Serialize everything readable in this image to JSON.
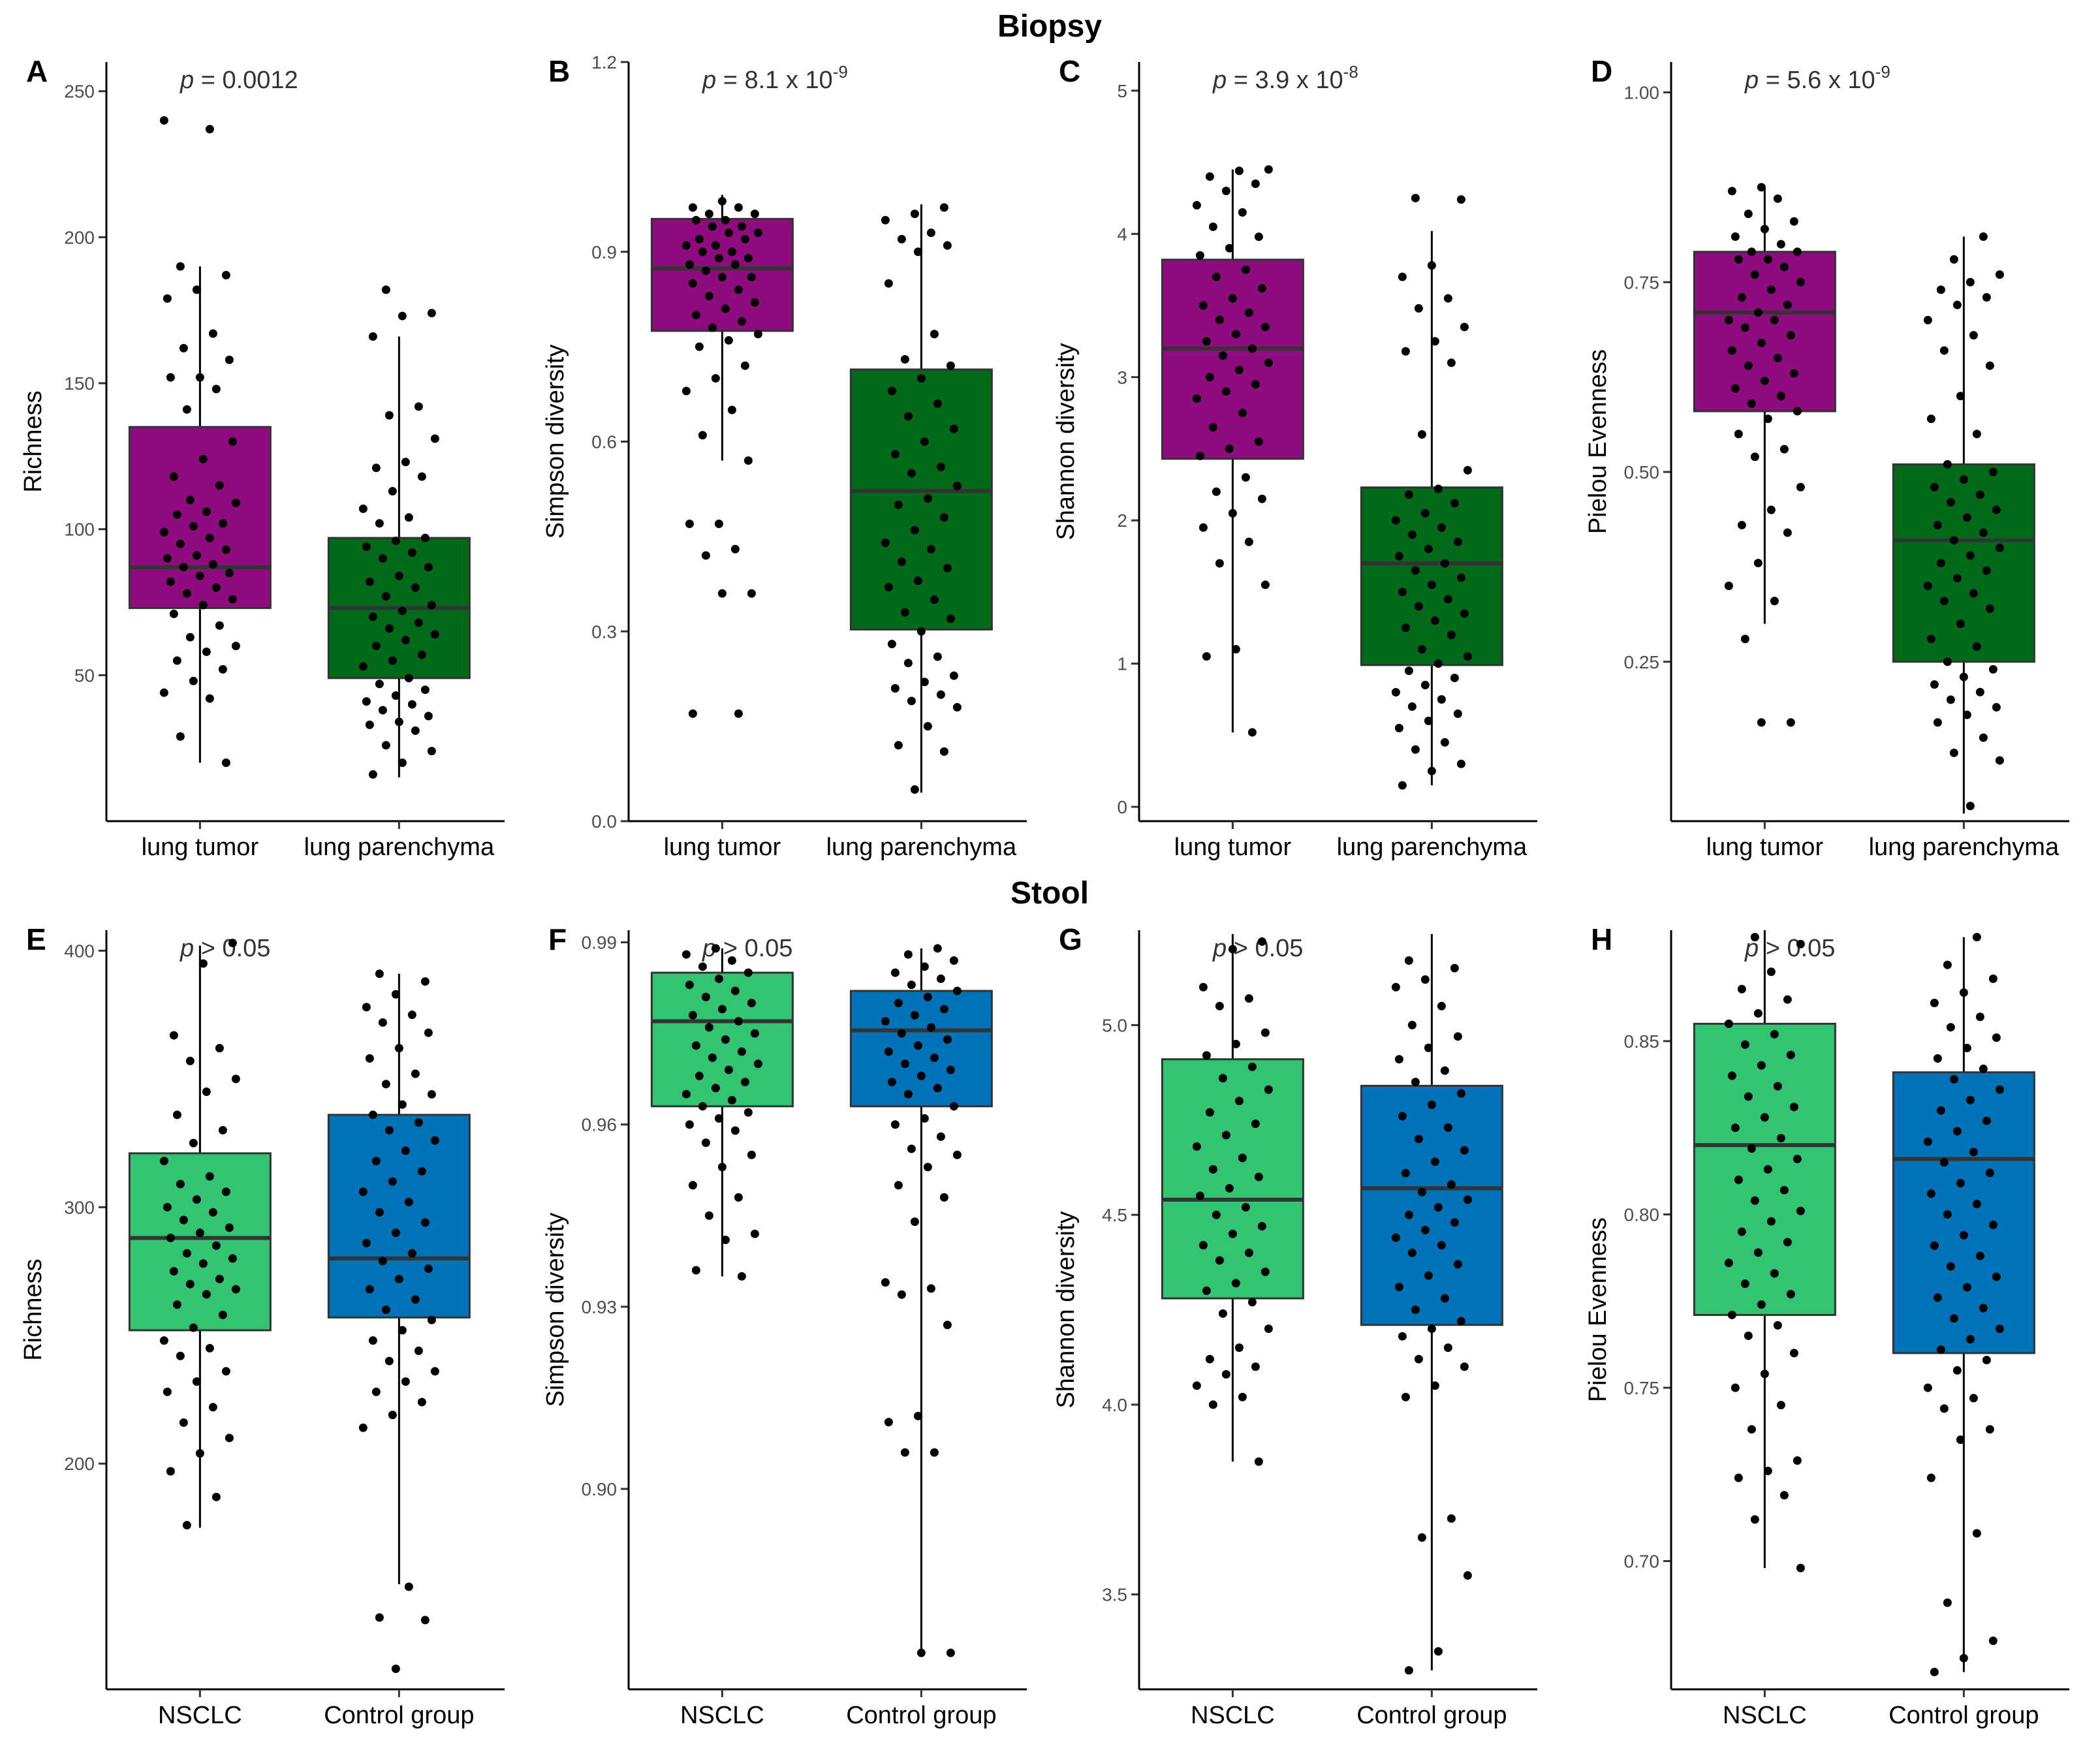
{
  "sections": {
    "biopsy": "Biopsy",
    "stool": "Stool"
  },
  "chart_data": [
    {
      "type": "box",
      "panel": "A",
      "section": "Biopsy",
      "p_value": {
        "italic": "p",
        "rest": " = 0.0012",
        "sup": ""
      },
      "ylabel": "Richness",
      "ylim": [
        0,
        260
      ],
      "yticks": [
        50,
        100,
        150,
        200,
        250
      ],
      "categories": [
        "lung tumor",
        "lung parenchyma"
      ],
      "colors": [
        "#8E0C7E",
        "#006A19"
      ],
      "boxes": [
        {
          "q1": 73,
          "median": 87,
          "q3": 135,
          "wlo": 20,
          "whi": 190
        },
        {
          "q1": 49,
          "median": 73,
          "q3": 97,
          "wlo": 15,
          "whi": 166
        }
      ],
      "points": [
        [
          240,
          237,
          190,
          187,
          182,
          179,
          167,
          162,
          158,
          152,
          152,
          148,
          141,
          130,
          124,
          118,
          115,
          110,
          109,
          106,
          105,
          102,
          101,
          99,
          97,
          95,
          93,
          91,
          90,
          88,
          87,
          85,
          84,
          82,
          80,
          78,
          76,
          74,
          71,
          67,
          63,
          60,
          58,
          55,
          52,
          48,
          44,
          42,
          29,
          20
        ],
        [
          182,
          174,
          173,
          166,
          142,
          139,
          131,
          123,
          121,
          118,
          113,
          107,
          104,
          102,
          97,
          96,
          94,
          92,
          90,
          87,
          84,
          82,
          80,
          77,
          74,
          72,
          70,
          68,
          66,
          64,
          62,
          60,
          57,
          55,
          53,
          49,
          47,
          45,
          43,
          41,
          40,
          38,
          36,
          34,
          33,
          31,
          26,
          24,
          20,
          16
        ]
      ]
    },
    {
      "type": "box",
      "panel": "B",
      "section": "Biopsy",
      "p_value": {
        "italic": "p",
        "rest": " = 8.1 x 10",
        "sup": "-9"
      },
      "ylabel": "Simpson diversity",
      "ylim": [
        0,
        1.2
      ],
      "yticks": [
        0.0,
        0.3,
        0.6,
        0.9,
        1.2
      ],
      "categories": [
        "lung tumor",
        "lung parenchyma"
      ],
      "colors": [
        "#8E0C7E",
        "#006A19"
      ],
      "boxes": [
        {
          "q1": 0.775,
          "median": 0.874,
          "q3": 0.952,
          "wlo": 0.57,
          "whi": 0.99
        },
        {
          "q1": 0.303,
          "median": 0.522,
          "q3": 0.714,
          "wlo": 0.045,
          "whi": 0.975
        }
      ],
      "points": [
        [
          0.98,
          0.97,
          0.97,
          0.96,
          0.96,
          0.95,
          0.95,
          0.94,
          0.94,
          0.93,
          0.93,
          0.92,
          0.92,
          0.91,
          0.91,
          0.9,
          0.9,
          0.89,
          0.89,
          0.88,
          0.88,
          0.87,
          0.86,
          0.86,
          0.85,
          0.84,
          0.83,
          0.82,
          0.81,
          0.8,
          0.79,
          0.78,
          0.77,
          0.76,
          0.75,
          0.72,
          0.7,
          0.68,
          0.65,
          0.61,
          0.57,
          0.47,
          0.47,
          0.43,
          0.42,
          0.36,
          0.36,
          0.17,
          0.17
        ],
        [
          0.97,
          0.96,
          0.95,
          0.93,
          0.92,
          0.91,
          0.9,
          0.85,
          0.77,
          0.73,
          0.72,
          0.7,
          0.68,
          0.66,
          0.64,
          0.62,
          0.6,
          0.58,
          0.56,
          0.55,
          0.53,
          0.51,
          0.5,
          0.48,
          0.46,
          0.44,
          0.43,
          0.41,
          0.4,
          0.38,
          0.37,
          0.35,
          0.33,
          0.32,
          0.3,
          0.28,
          0.26,
          0.25,
          0.23,
          0.22,
          0.21,
          0.2,
          0.19,
          0.18,
          0.15,
          0.12,
          0.11,
          0.05
        ]
      ]
    },
    {
      "type": "box",
      "panel": "C",
      "section": "Biopsy",
      "p_value": {
        "italic": "p",
        "rest": " = 3.9 x 10",
        "sup": "-8"
      },
      "ylabel": "Shannon diversity",
      "ylim": [
        -0.1,
        5.2
      ],
      "yticks": [
        0,
        1,
        2,
        3,
        4,
        5
      ],
      "categories": [
        "lung tumor",
        "lung parenchyma"
      ],
      "colors": [
        "#8E0C7E",
        "#006A19"
      ],
      "boxes": [
        {
          "q1": 2.43,
          "median": 3.2,
          "q3": 3.82,
          "wlo": 0.52,
          "whi": 4.45
        },
        {
          "q1": 0.99,
          "median": 1.7,
          "q3": 2.23,
          "wlo": 0.15,
          "whi": 4.02
        }
      ],
      "points": [
        [
          4.45,
          4.44,
          4.4,
          4.35,
          4.3,
          4.2,
          4.15,
          4.05,
          3.98,
          3.9,
          3.85,
          3.75,
          3.7,
          3.62,
          3.55,
          3.5,
          3.45,
          3.4,
          3.35,
          3.3,
          3.25,
          3.2,
          3.15,
          3.1,
          3.05,
          3.0,
          2.95,
          2.9,
          2.85,
          2.75,
          2.65,
          2.55,
          2.5,
          2.45,
          2.3,
          2.2,
          2.15,
          2.05,
          1.95,
          1.85,
          1.7,
          1.55,
          1.1,
          1.05,
          0.52
        ],
        [
          4.25,
          4.24,
          3.78,
          3.7,
          3.55,
          3.48,
          3.35,
          3.25,
          3.18,
          3.1,
          2.6,
          2.35,
          2.22,
          2.18,
          2.12,
          2.05,
          2.0,
          1.95,
          1.9,
          1.85,
          1.8,
          1.75,
          1.7,
          1.65,
          1.6,
          1.55,
          1.5,
          1.45,
          1.4,
          1.35,
          1.3,
          1.25,
          1.2,
          1.1,
          1.05,
          1.0,
          0.95,
          0.9,
          0.85,
          0.8,
          0.75,
          0.7,
          0.65,
          0.6,
          0.55,
          0.45,
          0.4,
          0.3,
          0.25,
          0.15
        ]
      ]
    },
    {
      "type": "box",
      "panel": "D",
      "section": "Biopsy",
      "p_value": {
        "italic": "p",
        "rest": " = 5.6 x 10",
        "sup": "-9"
      },
      "ylabel": "Pielou Evenness",
      "ylim": [
        0.04,
        1.04
      ],
      "yticks": [
        0.25,
        0.5,
        0.75,
        1.0
      ],
      "categories": [
        "lung tumor",
        "lung parenchyma"
      ],
      "colors": [
        "#8E0C7E",
        "#006A19"
      ],
      "boxes": [
        {
          "q1": 0.58,
          "median": 0.71,
          "q3": 0.79,
          "wlo": 0.3,
          "whi": 0.875
        },
        {
          "q1": 0.25,
          "median": 0.41,
          "q3": 0.51,
          "wlo": 0.05,
          "whi": 0.81
        }
      ],
      "points": [
        [
          0.875,
          0.87,
          0.86,
          0.84,
          0.83,
          0.82,
          0.81,
          0.8,
          0.79,
          0.79,
          0.78,
          0.78,
          0.77,
          0.76,
          0.75,
          0.74,
          0.73,
          0.72,
          0.71,
          0.7,
          0.7,
          0.69,
          0.68,
          0.67,
          0.66,
          0.65,
          0.64,
          0.63,
          0.62,
          0.61,
          0.6,
          0.59,
          0.58,
          0.57,
          0.55,
          0.53,
          0.52,
          0.48,
          0.45,
          0.43,
          0.42,
          0.38,
          0.35,
          0.33,
          0.28,
          0.17,
          0.17
        ],
        [
          0.81,
          0.78,
          0.76,
          0.75,
          0.74,
          0.73,
          0.72,
          0.7,
          0.68,
          0.66,
          0.64,
          0.6,
          0.57,
          0.55,
          0.51,
          0.5,
          0.49,
          0.48,
          0.47,
          0.46,
          0.45,
          0.44,
          0.43,
          0.42,
          0.41,
          0.4,
          0.39,
          0.38,
          0.37,
          0.36,
          0.35,
          0.34,
          0.33,
          0.32,
          0.3,
          0.28,
          0.27,
          0.25,
          0.24,
          0.23,
          0.22,
          0.21,
          0.2,
          0.19,
          0.18,
          0.17,
          0.15,
          0.13,
          0.12,
          0.06
        ]
      ]
    },
    {
      "type": "box",
      "panel": "E",
      "section": "Stool",
      "p_value": {
        "italic": "p",
        "rest": " > 0.05",
        "sup": ""
      },
      "ylabel": "Richness",
      "ylim": [
        112,
        408
      ],
      "yticks": [
        200,
        300,
        400
      ],
      "categories": [
        "NSCLC",
        "Control group"
      ],
      "colors": [
        "#33C472",
        "#0072B9"
      ],
      "boxes": [
        {
          "q1": 252,
          "median": 288,
          "q3": 321,
          "wlo": 175,
          "whi": 402
        },
        {
          "q1": 257,
          "median": 280,
          "q3": 336,
          "wlo": 153,
          "whi": 391
        }
      ],
      "points": [
        [
          403,
          395,
          367,
          362,
          357,
          350,
          345,
          336,
          330,
          325,
          318,
          312,
          309,
          306,
          303,
          300,
          298,
          295,
          292,
          290,
          288,
          285,
          282,
          280,
          278,
          275,
          272,
          270,
          268,
          266,
          262,
          258,
          253,
          248,
          245,
          242,
          236,
          232,
          228,
          222,
          216,
          210,
          204,
          197,
          187,
          176
        ],
        [
          391,
          388,
          383,
          378,
          375,
          372,
          368,
          362,
          358,
          352,
          348,
          344,
          340,
          336,
          333,
          330,
          326,
          322,
          318,
          314,
          310,
          306,
          302,
          298,
          294,
          290,
          286,
          282,
          279,
          276,
          272,
          268,
          264,
          260,
          256,
          252,
          248,
          244,
          240,
          236,
          232,
          228,
          224,
          219,
          214,
          152,
          140,
          139,
          120
        ]
      ]
    },
    {
      "type": "box",
      "panel": "F",
      "section": "Stool",
      "p_value": {
        "italic": "p",
        "rest": " > 0.05",
        "sup": ""
      },
      "ylabel": "Simpson diversity",
      "ylim": [
        0.867,
        0.992
      ],
      "yticks": [
        0.9,
        0.93,
        0.96,
        0.99
      ],
      "categories": [
        "NSCLC",
        "Control group"
      ],
      "colors": [
        "#33C472",
        "#0072B9"
      ],
      "boxes": [
        {
          "q1": 0.963,
          "median": 0.977,
          "q3": 0.985,
          "wlo": 0.935,
          "whi": 0.989
        },
        {
          "q1": 0.963,
          "median": 0.9755,
          "q3": 0.982,
          "wlo": 0.873,
          "whi": 0.989
        }
      ],
      "points": [
        [
          0.989,
          0.988,
          0.987,
          0.986,
          0.985,
          0.984,
          0.983,
          0.982,
          0.981,
          0.98,
          0.979,
          0.978,
          0.977,
          0.976,
          0.975,
          0.974,
          0.973,
          0.972,
          0.971,
          0.97,
          0.969,
          0.968,
          0.967,
          0.966,
          0.965,
          0.964,
          0.963,
          0.962,
          0.961,
          0.96,
          0.959,
          0.957,
          0.955,
          0.953,
          0.95,
          0.948,
          0.945,
          0.942,
          0.941,
          0.936,
          0.935
        ],
        [
          0.989,
          0.988,
          0.987,
          0.986,
          0.985,
          0.984,
          0.983,
          0.982,
          0.981,
          0.98,
          0.979,
          0.978,
          0.977,
          0.976,
          0.975,
          0.974,
          0.973,
          0.972,
          0.971,
          0.97,
          0.969,
          0.968,
          0.967,
          0.966,
          0.965,
          0.963,
          0.961,
          0.96,
          0.958,
          0.956,
          0.955,
          0.953,
          0.95,
          0.948,
          0.944,
          0.934,
          0.933,
          0.932,
          0.927,
          0.912,
          0.911,
          0.906,
          0.906,
          0.873,
          0.873
        ]
      ]
    },
    {
      "type": "box",
      "panel": "G",
      "section": "Stool",
      "p_value": {
        "italic": "p",
        "rest": " > 0.05",
        "sup": ""
      },
      "ylabel": "Shannon diversity",
      "ylim": [
        3.25,
        5.25
      ],
      "yticks": [
        3.5,
        4.0,
        4.5,
        5.0
      ],
      "categories": [
        "NSCLC",
        "Control group"
      ],
      "colors": [
        "#33C472",
        "#0072B9"
      ],
      "boxes": [
        {
          "q1": 4.28,
          "median": 4.54,
          "q3": 4.91,
          "wlo": 3.85,
          "whi": 5.24
        },
        {
          "q1": 4.21,
          "median": 4.57,
          "q3": 4.84,
          "wlo": 3.3,
          "whi": 5.24
        }
      ],
      "points": [
        [
          5.22,
          5.2,
          5.1,
          5.07,
          5.05,
          4.98,
          4.95,
          4.92,
          4.89,
          4.86,
          4.83,
          4.8,
          4.77,
          4.74,
          4.71,
          4.68,
          4.65,
          4.62,
          4.6,
          4.57,
          4.55,
          4.52,
          4.5,
          4.47,
          4.45,
          4.42,
          4.4,
          4.38,
          4.35,
          4.32,
          4.3,
          4.27,
          4.24,
          4.2,
          4.15,
          4.12,
          4.1,
          4.08,
          4.05,
          4.02,
          4.0,
          3.85
        ],
        [
          5.17,
          5.15,
          5.12,
          5.1,
          5.05,
          5.0,
          4.97,
          4.94,
          4.91,
          4.88,
          4.85,
          4.82,
          4.79,
          4.76,
          4.73,
          4.7,
          4.67,
          4.64,
          4.61,
          4.58,
          4.56,
          4.54,
          4.52,
          4.5,
          4.48,
          4.46,
          4.44,
          4.42,
          4.4,
          4.37,
          4.34,
          4.31,
          4.28,
          4.25,
          4.22,
          4.2,
          4.18,
          4.15,
          4.12,
          4.1,
          4.05,
          4.02,
          3.7,
          3.65,
          3.55,
          3.35,
          3.3
        ]
      ]
    },
    {
      "type": "box",
      "panel": "H",
      "section": "Stool",
      "p_value": {
        "italic": "p",
        "rest": " > 0.05",
        "sup": ""
      },
      "ylabel": "Pielou Evenness",
      "ylim": [
        0.663,
        0.882
      ],
      "yticks": [
        0.7,
        0.75,
        0.8,
        0.85
      ],
      "categories": [
        "NSCLC",
        "Control group"
      ],
      "colors": [
        "#33C472",
        "#0072B9"
      ],
      "boxes": [
        {
          "q1": 0.771,
          "median": 0.82,
          "q3": 0.855,
          "wlo": 0.698,
          "whi": 0.882
        },
        {
          "q1": 0.76,
          "median": 0.816,
          "q3": 0.841,
          "wlo": 0.668,
          "whi": 0.88
        }
      ],
      "points": [
        [
          0.88,
          0.878,
          0.87,
          0.865,
          0.862,
          0.858,
          0.855,
          0.852,
          0.849,
          0.846,
          0.843,
          0.84,
          0.837,
          0.834,
          0.831,
          0.828,
          0.825,
          0.822,
          0.819,
          0.816,
          0.813,
          0.81,
          0.807,
          0.804,
          0.801,
          0.798,
          0.795,
          0.792,
          0.789,
          0.786,
          0.783,
          0.78,
          0.777,
          0.774,
          0.771,
          0.768,
          0.765,
          0.76,
          0.754,
          0.75,
          0.745,
          0.738,
          0.729,
          0.726,
          0.724,
          0.719,
          0.712,
          0.698
        ],
        [
          0.88,
          0.872,
          0.868,
          0.864,
          0.861,
          0.857,
          0.854,
          0.851,
          0.848,
          0.845,
          0.842,
          0.839,
          0.836,
          0.833,
          0.83,
          0.827,
          0.824,
          0.821,
          0.818,
          0.815,
          0.812,
          0.809,
          0.806,
          0.803,
          0.8,
          0.797,
          0.794,
          0.791,
          0.788,
          0.785,
          0.782,
          0.779,
          0.776,
          0.773,
          0.77,
          0.767,
          0.764,
          0.761,
          0.758,
          0.755,
          0.75,
          0.747,
          0.744,
          0.738,
          0.735,
          0.724,
          0.708,
          0.688,
          0.677,
          0.672,
          0.668
        ]
      ]
    }
  ]
}
